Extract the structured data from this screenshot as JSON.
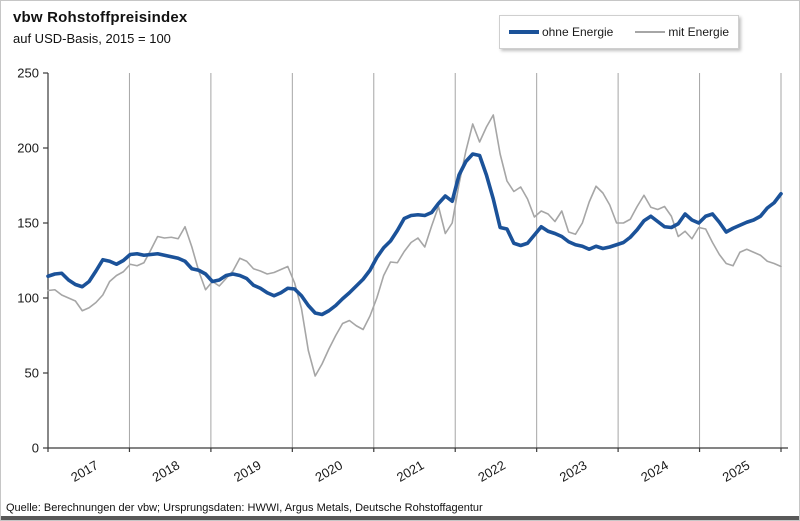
{
  "header": {
    "title": "vbw Rohstoffpreisindex",
    "subtitle": "auf USD-Basis, 2015 = 100"
  },
  "legend": {
    "items": [
      {
        "label": "ohne Energie",
        "color": "#1b5299",
        "thickness": 4
      },
      {
        "label": "mit Energie",
        "color": "#a6a6a6",
        "thickness": 2
      }
    ]
  },
  "source_line": "Quelle: Berechnungen der vbw; Ursprungsdaten: HWWI, Argus Metals, Deutsche Rohstoffagentur",
  "chart_data": {
    "type": "line",
    "title": "vbw Rohstoffpreisindex",
    "subtitle": "auf USD-Basis, 2015 = 100",
    "xlabel": "",
    "ylabel": "",
    "ylim": [
      0,
      250
    ],
    "y_ticks": [
      0,
      50,
      100,
      150,
      200,
      250
    ],
    "categories_years": [
      "2017",
      "2018",
      "2019",
      "2020",
      "2021",
      "2022",
      "2023",
      "2024",
      "2025"
    ],
    "points_per_year": 12,
    "grid": "vertical-year-lines-only",
    "legend_position": "top-right",
    "axis_color": "#3a3a3a",
    "gridline_color": "#a6a6a6",
    "tick_label_color": "#1a1a1a",
    "series": [
      {
        "name": "ohne Energie",
        "color": "#1b5299",
        "width": 3.6,
        "values": [
          114.5,
          116,
          116.5,
          112,
          109,
          107.5,
          111,
          118,
          125.5,
          124.5,
          122.5,
          125,
          129,
          129.5,
          128.5,
          129,
          129.5,
          128.5,
          127.5,
          126.5,
          124.5,
          119.5,
          118.5,
          116,
          111,
          112,
          115,
          116,
          115,
          113,
          108.5,
          106.5,
          103.5,
          101.5,
          103.5,
          106.5,
          106,
          101.5,
          95,
          90,
          89,
          91.5,
          95,
          99.5,
          103.5,
          108,
          112.5,
          118.5,
          127,
          133.5,
          138,
          145,
          153,
          155,
          155.5,
          155,
          157,
          163,
          168,
          164.5,
          182,
          191,
          196,
          195,
          182,
          166,
          147,
          146,
          136.5,
          135,
          136.5,
          142,
          147.5,
          144.5,
          143,
          141,
          137.5,
          135.5,
          134.5,
          132.5,
          134.5,
          133,
          134,
          135.5,
          137,
          140.5,
          145.5,
          151.5,
          154.5,
          151,
          147.5,
          147,
          149.5,
          156,
          152,
          150,
          154.5,
          156,
          150.5,
          144,
          146.5,
          148.5,
          150.5,
          152,
          154.5,
          160,
          163.5,
          169.5
        ]
      },
      {
        "name": "mit Energie",
        "color": "#a6a6a6",
        "width": 1.6,
        "values": [
          105,
          105.5,
          102,
          100,
          98,
          91.5,
          93.5,
          97,
          102,
          111,
          115,
          117.5,
          122.5,
          121.5,
          123.5,
          132,
          141,
          140,
          140.5,
          139.5,
          147.5,
          134,
          118,
          105.5,
          111,
          108,
          113,
          118,
          126.5,
          124.5,
          119.5,
          118,
          116,
          117,
          119,
          121,
          110,
          93,
          65,
          48,
          56,
          66,
          75,
          83,
          85,
          81.5,
          79,
          88,
          100,
          115,
          124,
          123.5,
          131,
          137,
          140,
          134,
          148,
          161,
          143,
          150,
          176,
          198,
          216,
          204,
          214,
          222,
          196,
          178,
          171,
          174,
          166,
          154,
          158,
          156,
          151,
          158,
          144,
          142.5,
          150,
          164,
          174.5,
          170,
          162,
          150,
          150,
          152.5,
          161,
          168.5,
          160.5,
          159,
          161,
          154.5,
          141,
          144.5,
          139.5,
          147,
          146,
          137,
          129,
          123,
          121.5,
          130.5,
          132.5,
          130.5,
          128.5,
          124.5,
          123,
          121
        ]
      }
    ]
  }
}
